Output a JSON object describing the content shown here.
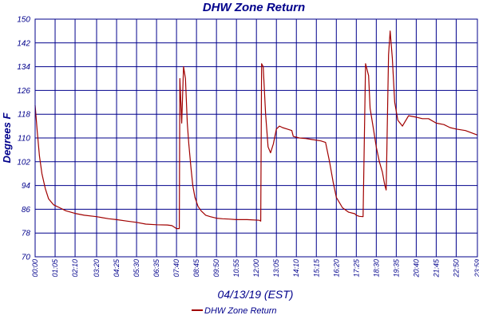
{
  "chart_data": {
    "type": "line",
    "title": "DHW Zone Return",
    "xlabel": "04/13/19 (EST)",
    "ylabel": "Degrees F",
    "ylim": [
      70,
      150
    ],
    "yticks": [
      150,
      142,
      134,
      126,
      118,
      110,
      102,
      94,
      86,
      78,
      70
    ],
    "xlim": [
      "00:00",
      "23:59"
    ],
    "xticks": [
      "00:00",
      "01:05",
      "02:10",
      "03:20",
      "04:25",
      "05:30",
      "06:35",
      "07:40",
      "08:45",
      "09:50",
      "10:55",
      "12:00",
      "13:05",
      "14:10",
      "15:15",
      "16:20",
      "17:25",
      "18:30",
      "19:35",
      "20:40",
      "21:45",
      "22:50",
      "23:59"
    ],
    "grid": true,
    "legend_position": "bottom-center",
    "colors": {
      "series": "#a00000",
      "grid": "#00008b",
      "text": "#00008b"
    },
    "series": [
      {
        "name": "DHW Zone Return",
        "x": [
          "00:00",
          "00:07",
          "00:14",
          "00:22",
          "00:33",
          "00:44",
          "01:00",
          "01:20",
          "01:40",
          "02:10",
          "02:40",
          "03:20",
          "04:00",
          "04:25",
          "05:00",
          "05:30",
          "06:00",
          "06:35",
          "07:10",
          "07:25",
          "07:40",
          "07:49",
          "07:51",
          "07:57",
          "08:03",
          "08:09",
          "08:15",
          "08:20",
          "08:27",
          "08:33",
          "08:40",
          "08:50",
          "09:00",
          "09:15",
          "09:30",
          "09:50",
          "10:10",
          "10:30",
          "10:55",
          "11:30",
          "12:10",
          "12:14",
          "12:17",
          "12:22",
          "12:30",
          "12:38",
          "12:46",
          "12:55",
          "13:05",
          "13:15",
          "13:25",
          "13:40",
          "13:55",
          "14:00",
          "14:20",
          "14:40",
          "15:00",
          "15:30",
          "15:45",
          "15:58",
          "16:10",
          "16:20",
          "16:40",
          "17:00",
          "17:20",
          "17:25",
          "17:35",
          "17:47",
          "17:55",
          "18:05",
          "18:10",
          "18:20",
          "18:30",
          "18:40",
          "18:50",
          "18:55",
          "18:58",
          "19:02",
          "19:10",
          "19:15",
          "19:22",
          "19:30",
          "19:40",
          "19:55",
          "20:15",
          "20:40",
          "21:00",
          "21:20",
          "21:45",
          "22:10",
          "22:30",
          "22:50",
          "23:20",
          "23:59"
        ],
        "y": [
          121,
          112,
          104,
          98,
          93,
          89.5,
          87.5,
          86.5,
          85.5,
          84.6,
          84,
          83.5,
          82.8,
          82.5,
          82,
          81.6,
          81,
          80.8,
          80.7,
          80.5,
          79.5,
          79.5,
          130,
          115,
          134,
          130,
          115,
          108,
          100,
          94,
          90,
          87,
          85.5,
          84,
          83.5,
          83,
          82.8,
          82.7,
          82.5,
          82.5,
          82.3,
          82,
          135,
          134,
          118,
          107,
          105,
          108,
          113,
          114,
          113.5,
          113,
          112.5,
          110.5,
          110,
          109.8,
          109.5,
          109,
          108.5,
          102,
          95,
          90,
          86.5,
          85,
          84.5,
          84,
          83.6,
          83.5,
          135,
          131,
          120,
          113.5,
          107,
          102,
          98.5,
          95.5,
          94,
          92.5,
          138,
          146,
          137,
          122,
          116,
          114,
          117.5,
          117,
          116.5,
          116.5,
          115,
          114.5,
          113.5,
          113,
          112.5,
          111
        ]
      }
    ]
  }
}
